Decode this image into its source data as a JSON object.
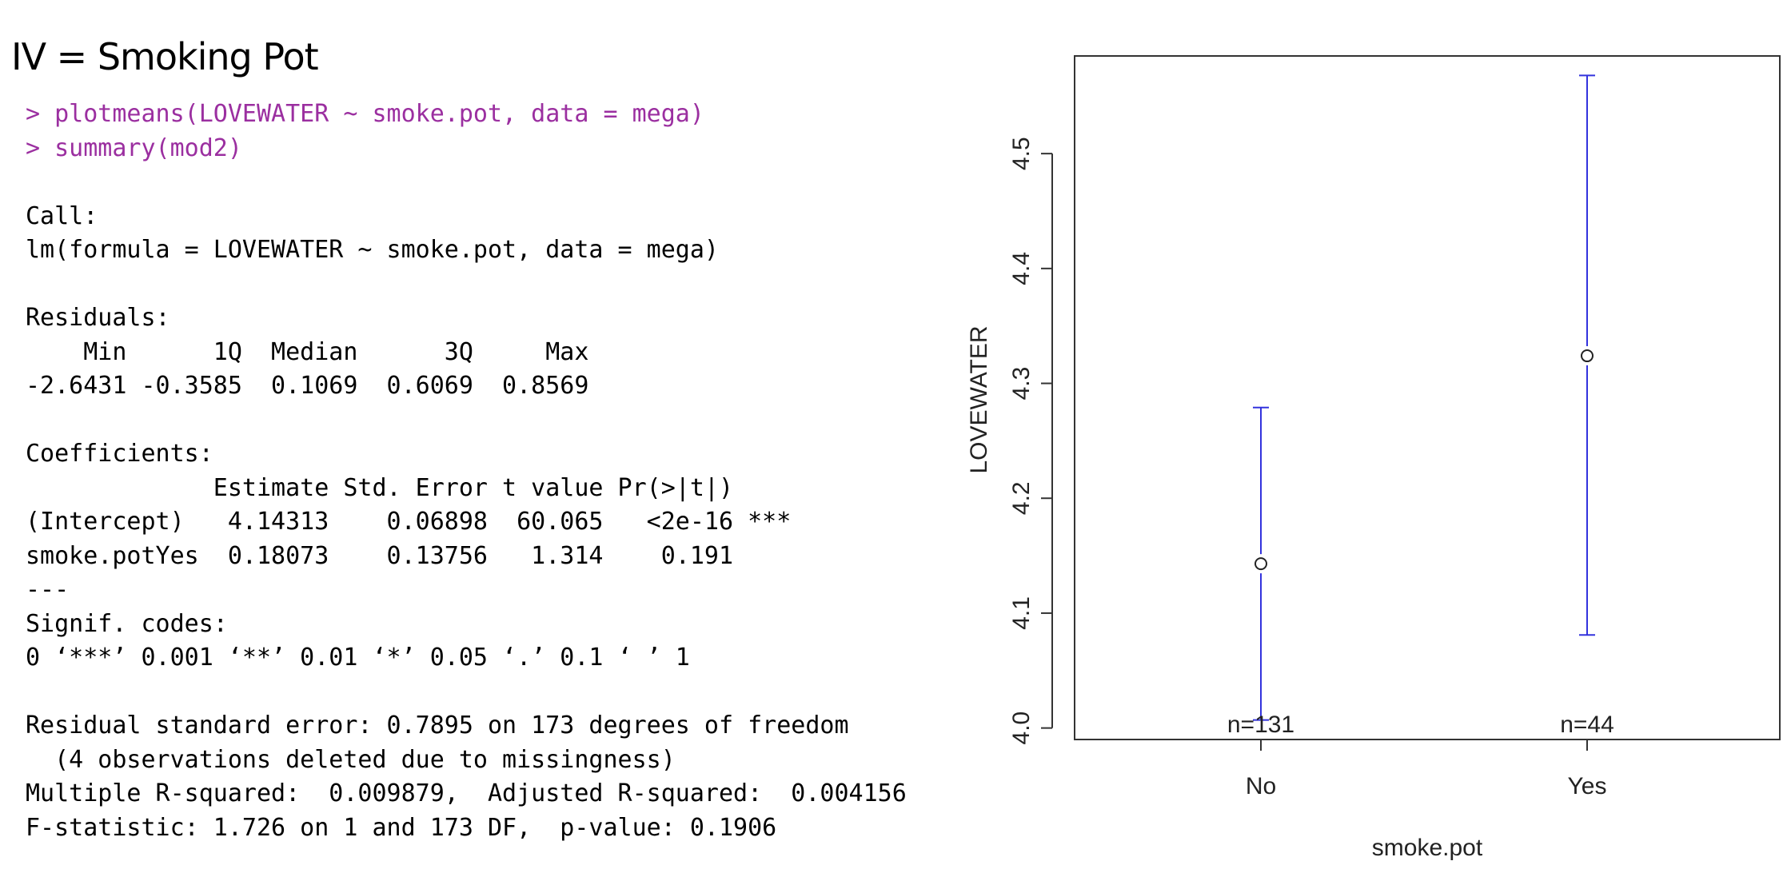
{
  "slide_title": "IV = Smoking Pot",
  "console": [
    {
      "text": "> plotmeans(LOVEWATER ~ smoke.pot, data = mega)",
      "kind": "cmd"
    },
    {
      "text": "> summary(mod2)",
      "kind": "cmd"
    },
    {
      "text": "",
      "kind": "out"
    },
    {
      "text": "Call:",
      "kind": "out"
    },
    {
      "text": "lm(formula = LOVEWATER ~ smoke.pot, data = mega)",
      "kind": "out"
    },
    {
      "text": "",
      "kind": "out"
    },
    {
      "text": "Residuals:",
      "kind": "out"
    },
    {
      "text": "    Min      1Q  Median      3Q     Max ",
      "kind": "out"
    },
    {
      "text": "-2.6431 -0.3585  0.1069  0.6069  0.8569 ",
      "kind": "out"
    },
    {
      "text": "",
      "kind": "out"
    },
    {
      "text": "Coefficients:",
      "kind": "out"
    },
    {
      "text": "             Estimate Std. Error t value Pr(>|t|)    ",
      "kind": "out"
    },
    {
      "text": "(Intercept)   4.14313    0.06898  60.065   <2e-16 ***",
      "kind": "out"
    },
    {
      "text": "smoke.potYes  0.18073    0.13756   1.314    0.191    ",
      "kind": "out"
    },
    {
      "text": "---",
      "kind": "out"
    },
    {
      "text": "Signif. codes:  ",
      "kind": "out"
    },
    {
      "text": "0 ‘***’ 0.001 ‘**’ 0.01 ‘*’ 0.05 ‘.’ 0.1 ‘ ’ 1",
      "kind": "out"
    },
    {
      "text": "",
      "kind": "out"
    },
    {
      "text": "Residual standard error: 0.7895 on 173 degrees of freedom",
      "kind": "out"
    },
    {
      "text": "  (4 observations deleted due to missingness)",
      "kind": "out"
    },
    {
      "text": "Multiple R-squared:  0.009879,\tAdjusted R-squared:  0.004156 ",
      "kind": "out"
    },
    {
      "text": "F-statistic: 1.726 on 1 and 173 DF,  p-value: 0.1906",
      "kind": "out"
    }
  ],
  "chart_data": {
    "type": "scatter",
    "title": "",
    "xlabel": "smoke.pot",
    "ylabel": "LOVEWATER",
    "categories": [
      "No",
      "Yes"
    ],
    "means": [
      4.143,
      4.324
    ],
    "ci_lower": [
      4.007,
      4.081
    ],
    "ci_upper": [
      4.279,
      4.568
    ],
    "n_labels": [
      "n=131",
      "n=44"
    ],
    "ylim": [
      3.99,
      4.585
    ],
    "yticks": [
      4.0,
      4.1,
      4.2,
      4.3,
      4.4,
      4.5
    ],
    "ytick_labels": [
      "4.0",
      "4.1",
      "4.2",
      "4.3",
      "4.4",
      "4.5"
    ],
    "error_bar_color": "#3333dd",
    "grid": false
  }
}
